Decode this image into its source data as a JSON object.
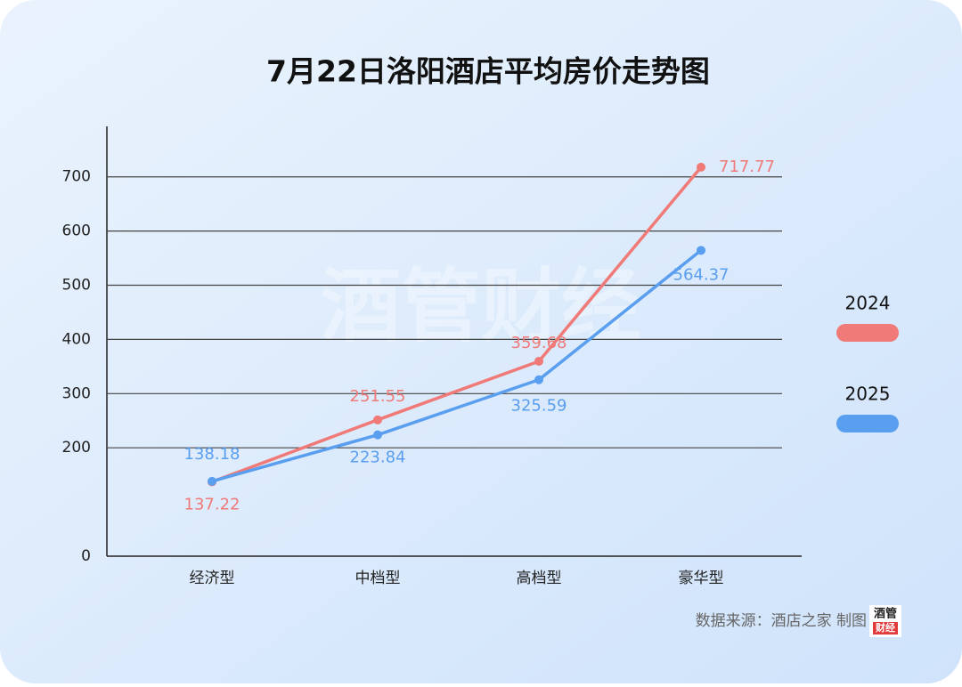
{
  "chart_data": {
    "type": "line",
    "title": "7月22日洛阳酒店平均房价走势图",
    "categories": [
      "经济型",
      "中档型",
      "高档型",
      "豪华型"
    ],
    "series": [
      {
        "name": "2024",
        "color": "#f07a78",
        "values": [
          137.22,
          251.55,
          359.68,
          717.77
        ]
      },
      {
        "name": "2025",
        "color": "#5a9ef0",
        "values": [
          138.18,
          223.84,
          325.59,
          564.37
        ]
      }
    ],
    "ylim": [
      0,
      780
    ],
    "yticks": [
      0,
      200,
      300,
      400,
      500,
      600,
      700
    ],
    "grid": true,
    "legend": "right",
    "source": "数据来源：酒店之家  制图：",
    "logo": [
      "酒管",
      "财经"
    ],
    "watermark": "酒管财经"
  }
}
